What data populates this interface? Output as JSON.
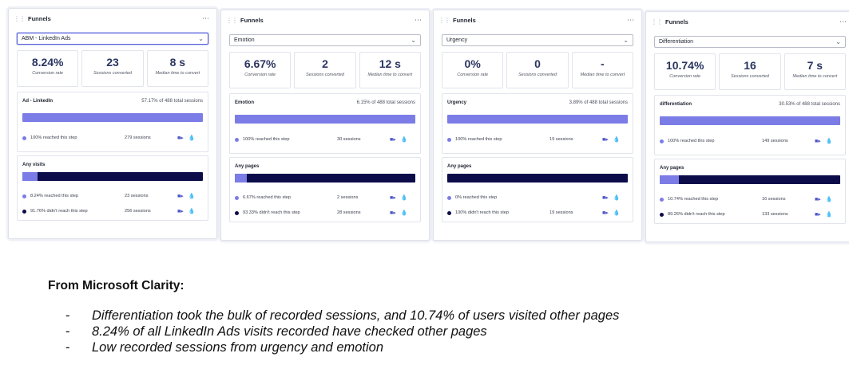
{
  "cards": [
    {
      "title": "Funnels",
      "more": "⋯",
      "select_value": "ABM - LinkedIn Ads",
      "active": true,
      "metrics": [
        {
          "value": "8.24%",
          "label": "Conversion rate"
        },
        {
          "value": "23",
          "label": "Sessions converted"
        },
        {
          "value": "8 s",
          "label": "Median time to convert"
        }
      ],
      "step1": {
        "name": "Ad - LinkedIn",
        "pct": "57.17% of 488 total sessions",
        "reached": "100% reached this step",
        "sessions": "279 sessions"
      },
      "step2": {
        "name": "Any visits",
        "fill": 0.0824,
        "reached": "8.24% reached this step",
        "reached_sessions": "23 sessions",
        "dropped": "91.76% didn't reach this step",
        "dropped_sessions": "256 sessions"
      }
    },
    {
      "title": "Funnels",
      "more": "⋯",
      "select_value": "Emotion",
      "active": false,
      "metrics": [
        {
          "value": "6.67%",
          "label": "Conversion rate"
        },
        {
          "value": "2",
          "label": "Sessions converted"
        },
        {
          "value": "12 s",
          "label": "Median time to convert"
        }
      ],
      "step1": {
        "name": "Emotion",
        "pct": "6.15% of 488 total sessions",
        "reached": "100% reached this step",
        "sessions": "30 sessions"
      },
      "step2": {
        "name": "Any pages",
        "fill": 0.0667,
        "reached": "6.67% reached this step",
        "reached_sessions": "2 sessions",
        "dropped": "93.33% didn't reach this step",
        "dropped_sessions": "28 sessions"
      }
    },
    {
      "title": "Funnels",
      "more": "⋯",
      "select_value": "Urgency",
      "active": false,
      "metrics": [
        {
          "value": "0%",
          "label": "Conversion rate"
        },
        {
          "value": "0",
          "label": "Sessions converted"
        },
        {
          "value": "-",
          "label": "Median time to convert"
        }
      ],
      "step1": {
        "name": "Urgency",
        "pct": "3.89% of 488 total sessions",
        "reached": "100% reached this step",
        "sessions": "19 sessions"
      },
      "step2": {
        "name": "Any pages",
        "fill": 0,
        "reached": "0% reached this step",
        "reached_sessions": "",
        "dropped": "100% didn't reach this step",
        "dropped_sessions": "19 sessions"
      }
    },
    {
      "title": "Funnels",
      "more": "⋯",
      "select_value": "Differentiation",
      "active": false,
      "metrics": [
        {
          "value": "10.74%",
          "label": "Conversion rate"
        },
        {
          "value": "16",
          "label": "Sessions converted"
        },
        {
          "value": "7 s",
          "label": "Median time to convert"
        }
      ],
      "step1": {
        "name": "differentiation",
        "pct": "30.53% of 488 total sessions",
        "reached": "100% reached this step",
        "sessions": "149 sessions"
      },
      "step2": {
        "name": "Any pages",
        "fill": 0.1074,
        "reached": "10.74% reached this step",
        "reached_sessions": "16 sessions",
        "dropped": "89.26% didn't reach this step",
        "dropped_sessions": "133 sessions"
      }
    }
  ],
  "note": {
    "title": "From Microsoft Clarity:",
    "dash": "-",
    "bullets": [
      "Differentiation took the bulk of recorded sessions, and 10.74% of users visited other pages",
      "8.24% of all LinkedIn Ads visits recorded have checked other pages",
      "Low recorded sessions from urgency and emotion"
    ]
  },
  "colors": {
    "accent": "#7b7ce6",
    "dark_bar": "#0c0c4a",
    "metric_value": "#2a3560",
    "icon": "#4c55c7"
  },
  "icons": {
    "chevron": "chevron-down-icon",
    "recording": "recording-icon",
    "heatmap": "heatmap-icon",
    "drag": "drag-handle-icon",
    "more": "more-options-icon"
  }
}
